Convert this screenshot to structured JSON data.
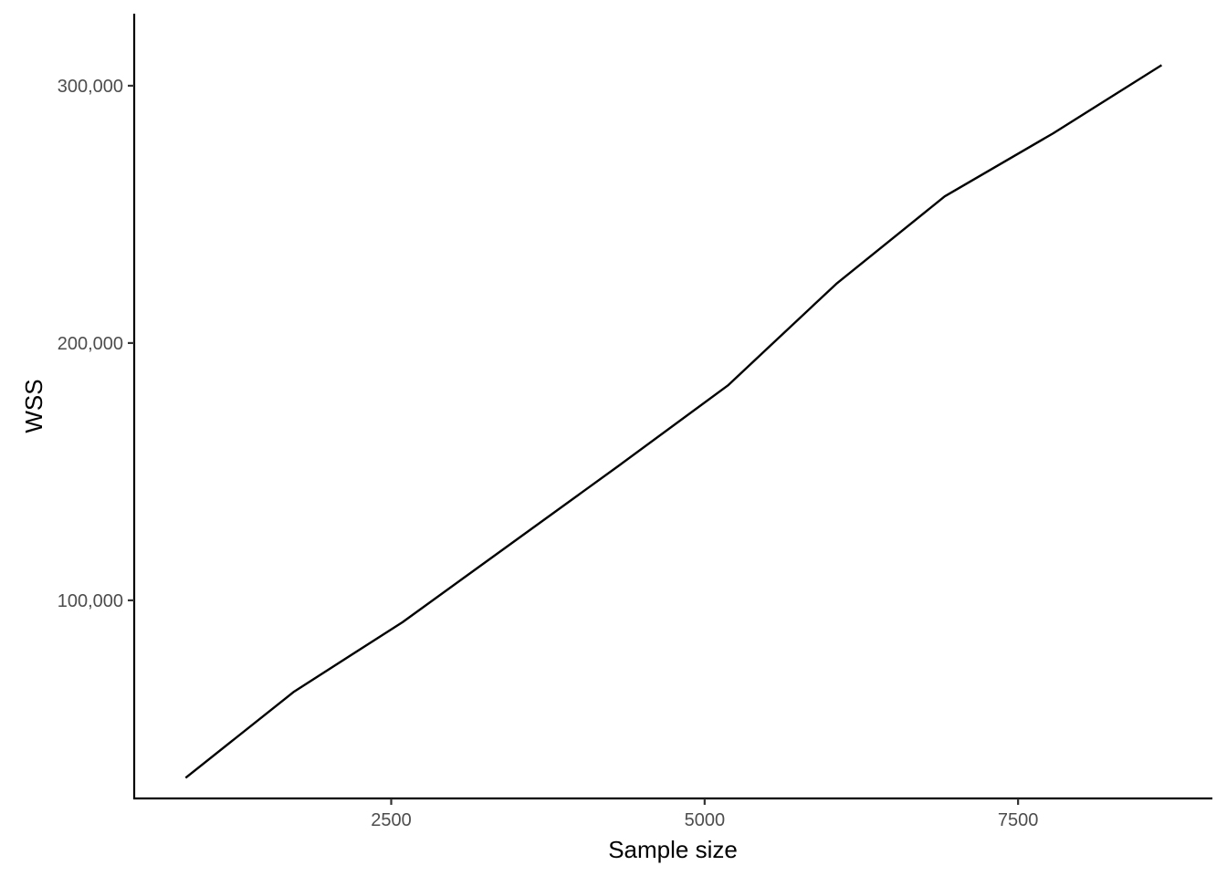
{
  "chart_data": {
    "type": "line",
    "title": "",
    "xlabel": "Sample size",
    "ylabel": "WSS",
    "xlim": [
      450,
      9050
    ],
    "ylim": [
      23000,
      328000
    ],
    "x_ticks": [
      2500,
      5000,
      7500
    ],
    "x_tick_labels": [
      "2500",
      "5000",
      "7500"
    ],
    "y_ticks": [
      100000,
      200000,
      300000
    ],
    "y_tick_labels": [
      "100,000",
      "200,000",
      "300,000"
    ],
    "grid": false,
    "legend": "none",
    "line_color": "#000000",
    "series": [
      {
        "x": [
          860,
          1725,
          2590,
          3455,
          4320,
          5185,
          6050,
          6915,
          7780,
          8645
        ],
        "values": [
          31000,
          64500,
          91500,
          122000,
          152500,
          183500,
          223000,
          257000,
          281500,
          308000
        ]
      }
    ]
  }
}
